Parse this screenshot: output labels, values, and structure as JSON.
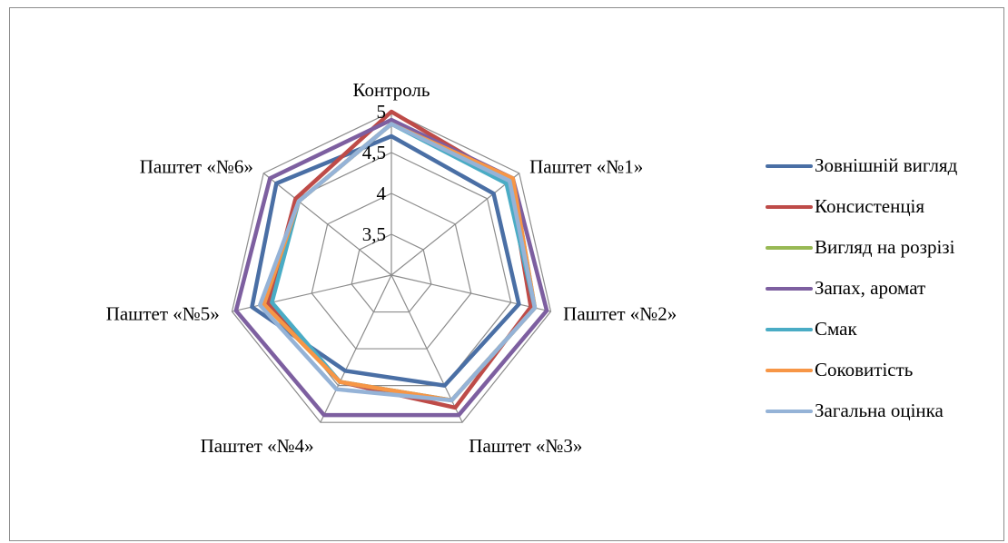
{
  "chart_data": {
    "type": "radar",
    "categories": [
      "Контроль",
      "Паштет «№1»",
      "Паштет «№2»",
      "Паштет «№3»",
      "Паштет «№4»",
      "Паштет «№5»",
      "Паштет «№6»"
    ],
    "r_range": [
      3,
      5
    ],
    "r_ticks": [
      3.5,
      4,
      4.5,
      5
    ],
    "r_tick_labels": [
      "3,5",
      "4",
      "4,5",
      "5"
    ],
    "grid": true,
    "legend_position": "right",
    "series": [
      {
        "name": "Зовнішній вигляд",
        "color": "#4a6fa5",
        "values": [
          4.7,
          4.6,
          4.6,
          4.5,
          4.3,
          4.75,
          4.8
        ]
      },
      {
        "name": "Консистенція",
        "color": "#be4b48",
        "values": [
          5.0,
          4.85,
          4.75,
          4.8,
          4.45,
          4.55,
          4.5
        ]
      },
      {
        "name": "Вигляд на розрізі",
        "color": "#98b954",
        "values": [
          4.85,
          4.9,
          4.8,
          4.7,
          4.45,
          4.6,
          4.45
        ]
      },
      {
        "name": "Запах, аромат",
        "color": "#7d5fa0",
        "values": [
          4.9,
          4.9,
          4.95,
          4.9,
          4.9,
          4.95,
          4.9
        ]
      },
      {
        "name": "Смак",
        "color": "#4aacc5",
        "values": [
          4.85,
          4.8,
          4.8,
          4.7,
          4.45,
          4.5,
          4.45
        ]
      },
      {
        "name": "Соковитість",
        "color": "#f79646",
        "values": [
          4.85,
          4.9,
          4.8,
          4.7,
          4.45,
          4.6,
          4.45
        ]
      },
      {
        "name": "Загальна оцінка",
        "color": "#95b3d7",
        "values": [
          4.85,
          4.85,
          4.8,
          4.7,
          4.55,
          4.65,
          4.45
        ]
      }
    ]
  }
}
